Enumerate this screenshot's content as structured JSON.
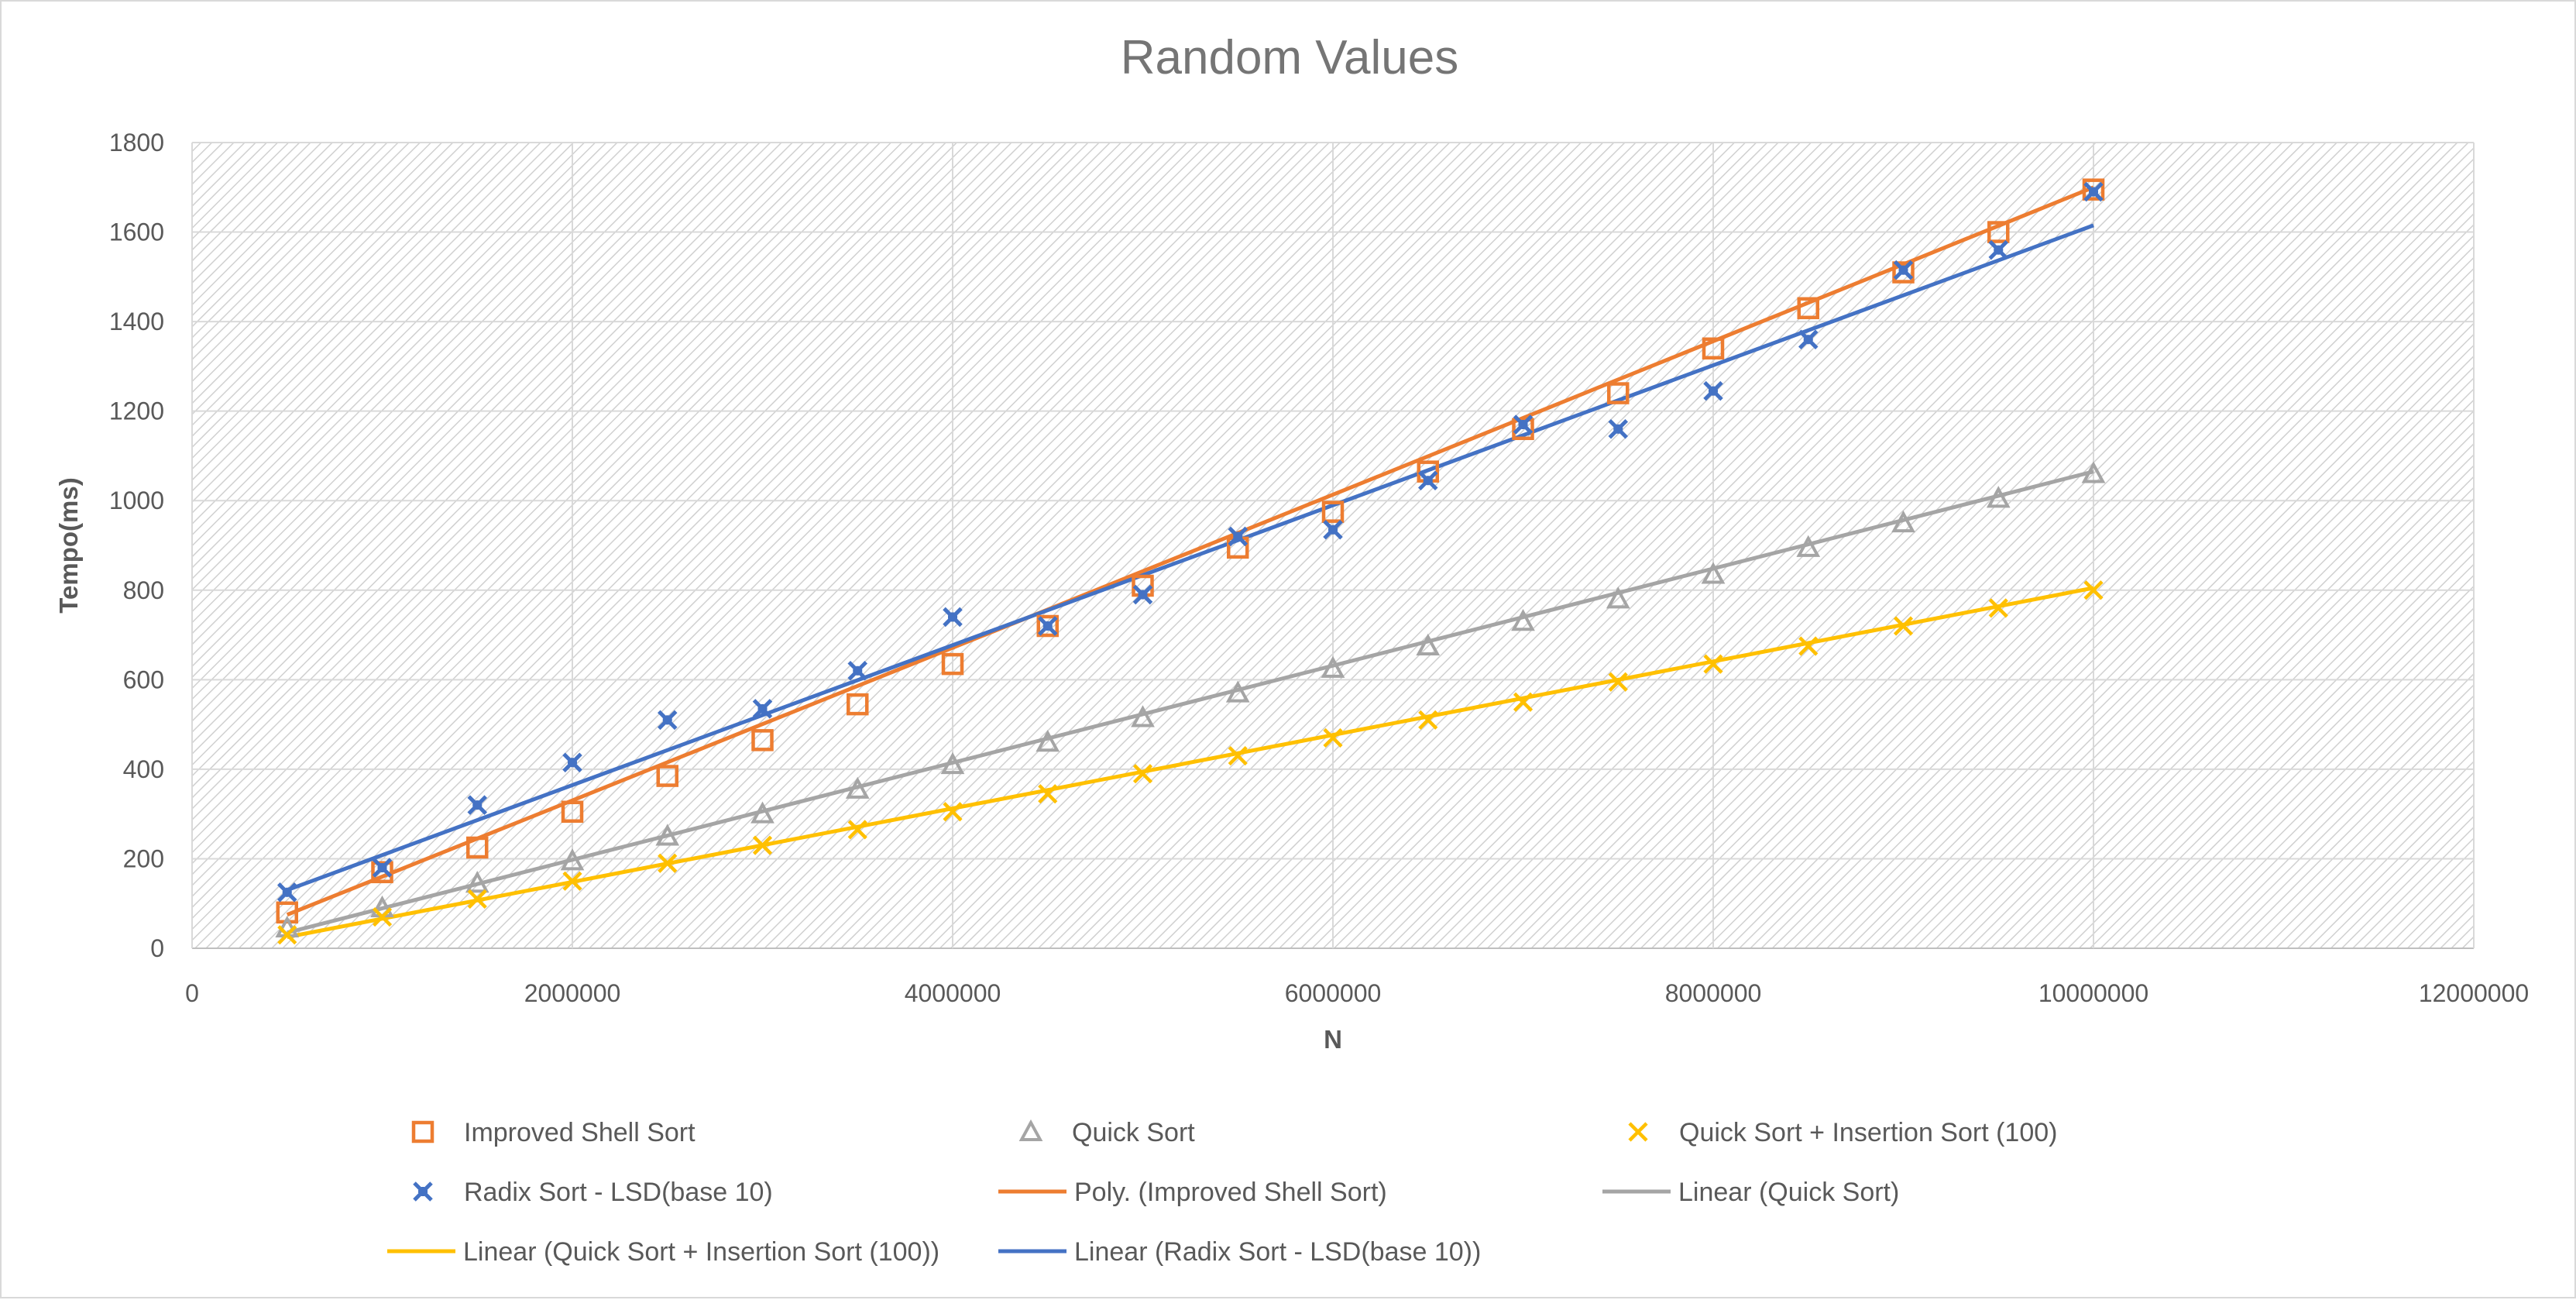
{
  "chart_data": {
    "type": "scatter",
    "title": "Random Values",
    "xlabel": "N",
    "ylabel": "Tempo(ms)",
    "xlim": [
      0,
      12000000
    ],
    "ylim": [
      0,
      1800
    ],
    "x_ticks": [
      0,
      2000000,
      4000000,
      6000000,
      8000000,
      10000000,
      12000000
    ],
    "y_ticks": [
      0,
      200,
      400,
      600,
      800,
      1000,
      1200,
      1400,
      1600,
      1800
    ],
    "grid": true,
    "plot_background": "diagonal-hatch",
    "legend_position": "bottom",
    "x": [
      500000,
      1000000,
      1500000,
      2000000,
      2500000,
      3000000,
      3500000,
      4000000,
      4500000,
      5000000,
      5500000,
      6000000,
      6500000,
      7000000,
      7500000,
      8000000,
      8500000,
      9000000,
      9500000,
      10000000
    ],
    "series": [
      {
        "name": "Improved Shell Sort",
        "marker": "square",
        "color": "#ED7D31",
        "values": [
          80,
          170,
          225,
          305,
          385,
          465,
          545,
          635,
          720,
          810,
          895,
          975,
          1065,
          1160,
          1240,
          1340,
          1430,
          1510,
          1600,
          1695
        ]
      },
      {
        "name": "Quick Sort",
        "marker": "triangle",
        "color": "#A5A5A5",
        "values": [
          45,
          90,
          145,
          195,
          250,
          300,
          355,
          410,
          460,
          515,
          570,
          625,
          675,
          730,
          780,
          835,
          895,
          950,
          1005,
          1060
        ]
      },
      {
        "name": "Quick Sort + Insertion Sort (100)",
        "marker": "x",
        "color": "#FFC000",
        "values": [
          30,
          70,
          110,
          150,
          190,
          230,
          265,
          305,
          345,
          390,
          430,
          470,
          510,
          550,
          595,
          635,
          675,
          720,
          760,
          800
        ]
      },
      {
        "name": "Radix Sort - LSD(base 10)",
        "marker": "star-x",
        "color": "#4472C4",
        "values": [
          125,
          180,
          320,
          415,
          510,
          535,
          620,
          740,
          720,
          790,
          920,
          935,
          1045,
          1170,
          1160,
          1245,
          1360,
          1515,
          1560,
          1690
        ]
      }
    ],
    "trendlines": [
      {
        "name": "Poly. (Improved Shell Sort)",
        "type": "poly",
        "color": "#ED7D31",
        "x_range": [
          500000,
          10000000
        ],
        "values_at_range": [
          75,
          1700
        ],
        "mid_value": 885
      },
      {
        "name": "Linear (Quick Sort)",
        "type": "linear",
        "color": "#A5A5A5",
        "x_range": [
          500000,
          10000000
        ],
        "values_at_range": [
          35,
          1065
        ]
      },
      {
        "name": "Linear (Quick Sort + Insertion Sort (100))",
        "type": "linear",
        "color": "#FFC000",
        "x_range": [
          500000,
          10000000
        ],
        "values_at_range": [
          25,
          805
        ]
      },
      {
        "name": "Linear (Radix Sort - LSD(base 10))",
        "type": "linear",
        "color": "#4472C4",
        "x_range": [
          500000,
          10000000
        ],
        "values_at_range": [
          130,
          1615
        ]
      }
    ],
    "legend": [
      {
        "label": "Improved Shell Sort",
        "symbol": "square",
        "color": "#ED7D31"
      },
      {
        "label": "Quick Sort",
        "symbol": "triangle",
        "color": "#A5A5A5"
      },
      {
        "label": "Quick Sort + Insertion Sort (100)",
        "symbol": "x",
        "color": "#FFC000"
      },
      {
        "label": "Radix Sort - LSD(base 10)",
        "symbol": "star-x",
        "color": "#4472C4"
      },
      {
        "label": "Poly. (Improved Shell Sort)",
        "symbol": "line",
        "color": "#ED7D31"
      },
      {
        "label": "Linear (Quick Sort)",
        "symbol": "line",
        "color": "#A5A5A5"
      },
      {
        "label": "Linear (Quick Sort + Insertion Sort (100))",
        "symbol": "line",
        "color": "#FFC000"
      },
      {
        "label": "Linear (Radix Sort - LSD(base 10))",
        "symbol": "line",
        "color": "#4472C4"
      }
    ]
  }
}
